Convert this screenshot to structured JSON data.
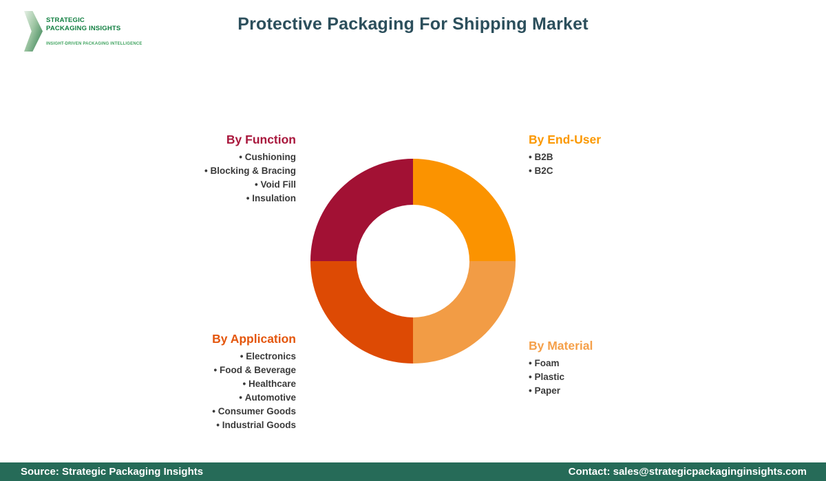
{
  "logo": {
    "line1": "STRATEGIC",
    "line2": "PACKAGING INSIGHTS",
    "tagline": "INSIGHT-DRIVEN PACKAGING INTELLIGENCE",
    "text_color": "#0F7E3F",
    "tagline_color": "#3FA35F",
    "chevron_light": "#E6F0E6",
    "chevron_mid": "#9FC6A4",
    "chevron_dark": "#2E7C4C"
  },
  "header": {
    "title": "Protective Packaging For Shipping Market",
    "title_color": "#2C4F5C"
  },
  "sections": {
    "by_function": {
      "heading": "By Function",
      "heading_color": "#A9183D",
      "items": [
        "Cushioning",
        "Blocking & Bracing",
        "Void Fill",
        "Insulation"
      ]
    },
    "by_end_user": {
      "heading": "By End-User",
      "heading_color": "#FB9800",
      "items": [
        "B2B",
        "B2C"
      ]
    },
    "by_application": {
      "heading": "By Application",
      "heading_color": "#E4560D",
      "items": [
        "Electronics",
        "Food & Beverage",
        "Healthcare",
        "Automotive",
        "Consumer Goods",
        "Industrial Goods"
      ]
    },
    "by_material": {
      "heading": "By Material",
      "heading_color": "#F5A04A",
      "items": [
        "Foam",
        "Plastic",
        "Paper"
      ]
    }
  },
  "chart_data": {
    "type": "pie",
    "variant": "donut",
    "start_angle_deg": 0,
    "inner_radius_ratio": 0.55,
    "segments": [
      {
        "name": "By End-User",
        "value": 25,
        "color": "#FB9300"
      },
      {
        "name": "By Material",
        "value": 25,
        "color": "#F29C45"
      },
      {
        "name": "By Application",
        "value": 25,
        "color": "#DD4A04"
      },
      {
        "name": "By Function",
        "value": 25,
        "color": "#A21134"
      }
    ]
  },
  "footer": {
    "bg": "#266B58",
    "text_color": "#FFFFFF",
    "source": "Source: Strategic Packaging Insights",
    "contact": "Contact: sales@strategicpackaginginsights.com"
  }
}
